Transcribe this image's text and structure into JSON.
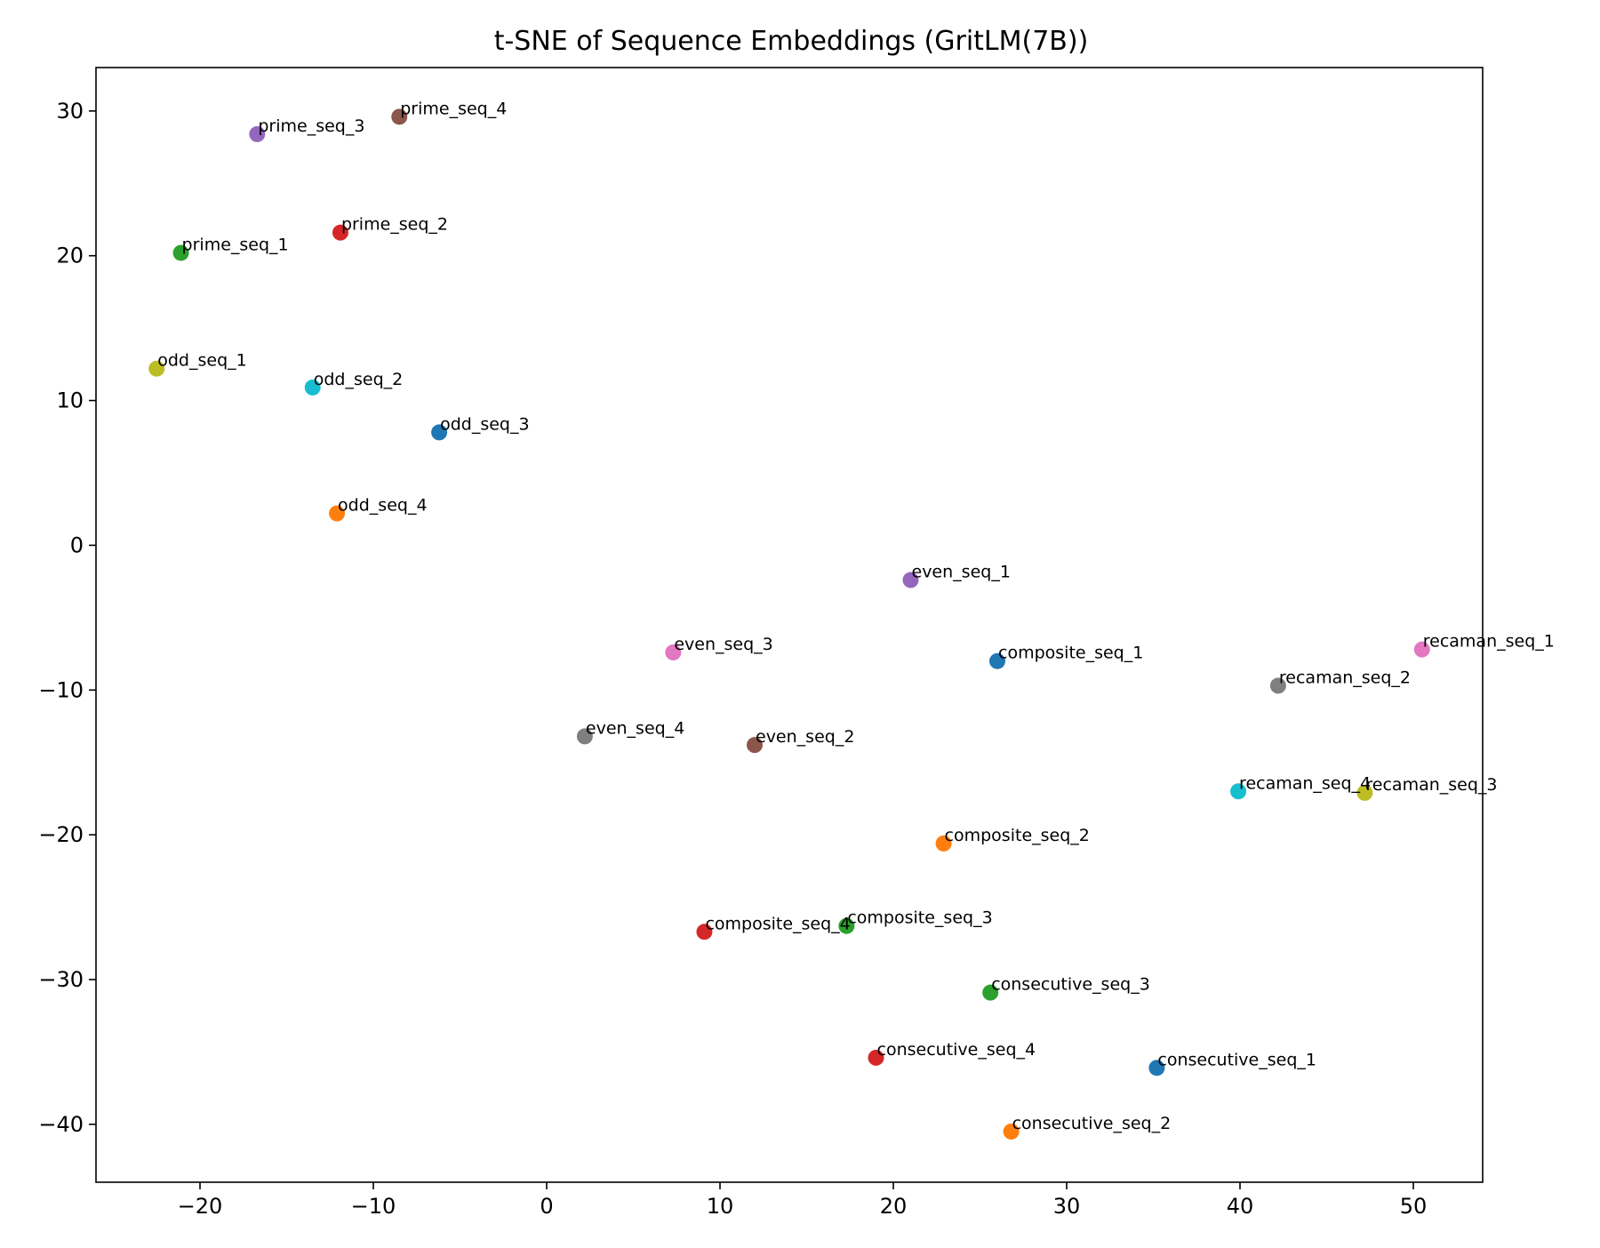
{
  "chart_data": {
    "type": "scatter",
    "title": "t-SNE of Sequence Embeddings (GritLM(7B))",
    "xlabel": "",
    "ylabel": "",
    "xlim": [
      -26,
      54
    ],
    "ylim": [
      -44,
      33
    ],
    "xticks": [
      {
        "value": -20,
        "label": "−20"
      },
      {
        "value": -10,
        "label": "−10"
      },
      {
        "value": 0,
        "label": "0"
      },
      {
        "value": 10,
        "label": "10"
      },
      {
        "value": 20,
        "label": "20"
      },
      {
        "value": 30,
        "label": "30"
      },
      {
        "value": 40,
        "label": "40"
      },
      {
        "value": 50,
        "label": "50"
      }
    ],
    "yticks": [
      {
        "value": 30,
        "label": "30"
      },
      {
        "value": 20,
        "label": "20"
      },
      {
        "value": 10,
        "label": "10"
      },
      {
        "value": 0,
        "label": "0"
      },
      {
        "value": -10,
        "label": "−10"
      },
      {
        "value": -20,
        "label": "−20"
      },
      {
        "value": -30,
        "label": "−30"
      },
      {
        "value": -40,
        "label": "−40"
      }
    ],
    "grid": false,
    "legend": "none",
    "points": [
      {
        "label": "prime_seq_3",
        "x": -16.7,
        "y": 28.4,
        "color": "#9467bd"
      },
      {
        "label": "prime_seq_4",
        "x": -8.5,
        "y": 29.6,
        "color": "#8c564b"
      },
      {
        "label": "prime_seq_2",
        "x": -11.9,
        "y": 21.6,
        "color": "#d62728"
      },
      {
        "label": "prime_seq_1",
        "x": -21.1,
        "y": 20.2,
        "color": "#2ca02c"
      },
      {
        "label": "odd_seq_1",
        "x": -22.5,
        "y": 12.2,
        "color": "#bcbd22"
      },
      {
        "label": "odd_seq_2",
        "x": -13.5,
        "y": 10.9,
        "color": "#17becf"
      },
      {
        "label": "odd_seq_3",
        "x": -6.2,
        "y": 7.8,
        "color": "#1f77b4"
      },
      {
        "label": "odd_seq_4",
        "x": -12.1,
        "y": 2.2,
        "color": "#ff7f0e"
      },
      {
        "label": "even_seq_1",
        "x": 21.0,
        "y": -2.4,
        "color": "#9467bd"
      },
      {
        "label": "even_seq_3",
        "x": 7.3,
        "y": -7.4,
        "color": "#e377c2"
      },
      {
        "label": "composite_seq_1",
        "x": 26.0,
        "y": -8.0,
        "color": "#1f77b4"
      },
      {
        "label": "recaman_seq_1",
        "x": 50.5,
        "y": -7.2,
        "color": "#e377c2"
      },
      {
        "label": "recaman_seq_2",
        "x": 42.2,
        "y": -9.7,
        "color": "#7f7f7f"
      },
      {
        "label": "even_seq_4",
        "x": 2.2,
        "y": -13.2,
        "color": "#7f7f7f"
      },
      {
        "label": "even_seq_2",
        "x": 12.0,
        "y": -13.8,
        "color": "#8c564b"
      },
      {
        "label": "recaman_seq_4",
        "x": 39.9,
        "y": -17.0,
        "color": "#17becf"
      },
      {
        "label": "recaman_seq_3",
        "x": 47.2,
        "y": -17.1,
        "color": "#bcbd22"
      },
      {
        "label": "composite_seq_2",
        "x": 22.9,
        "y": -20.6,
        "color": "#ff7f0e"
      },
      {
        "label": "composite_seq_4",
        "x": 9.1,
        "y": -26.7,
        "color": "#d62728"
      },
      {
        "label": "composite_seq_3",
        "x": 17.3,
        "y": -26.3,
        "color": "#2ca02c"
      },
      {
        "label": "consecutive_seq_3",
        "x": 25.6,
        "y": -30.9,
        "color": "#2ca02c"
      },
      {
        "label": "consecutive_seq_4",
        "x": 19.0,
        "y": -35.4,
        "color": "#d62728"
      },
      {
        "label": "consecutive_seq_1",
        "x": 35.2,
        "y": -36.1,
        "color": "#1f77b4"
      },
      {
        "label": "consecutive_seq_2",
        "x": 26.8,
        "y": -40.5,
        "color": "#ff7f0e"
      }
    ]
  }
}
